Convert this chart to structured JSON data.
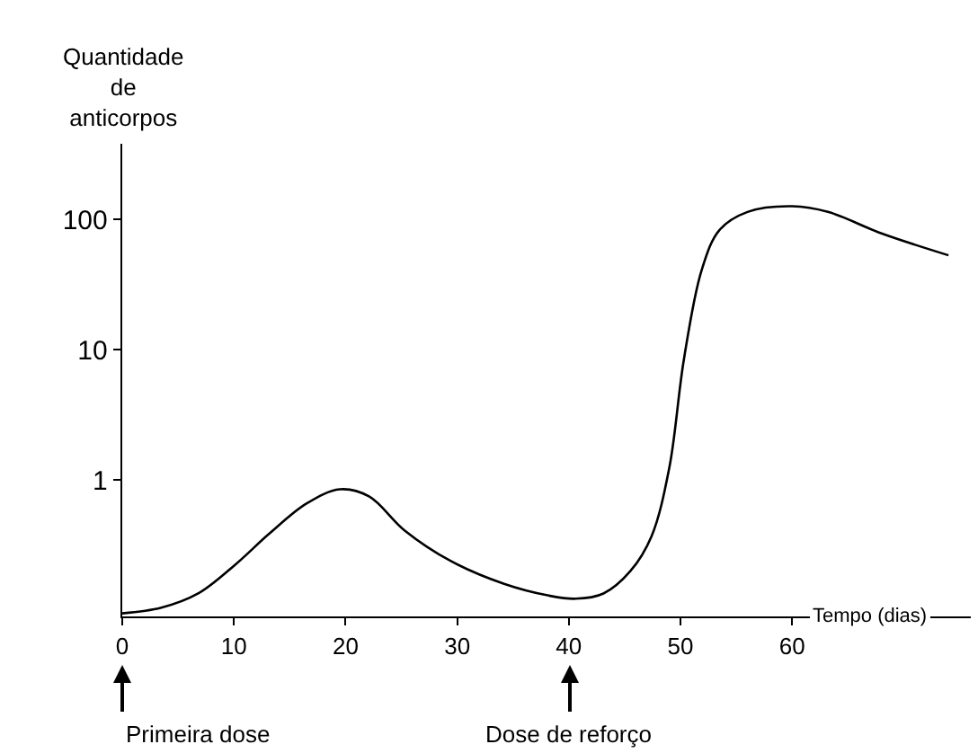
{
  "chart_data": {
    "type": "line",
    "xlabel": "Tempo (dias)",
    "ylabel": "Quantidade de anticorpos",
    "x": [
      0,
      3.5,
      6.8,
      10,
      13.2,
      16.5,
      19.5,
      22.1,
      25.3,
      29.4,
      34.2,
      38.2,
      40.6,
      43.1,
      45.5,
      47.4,
      49,
      50.3,
      51.9,
      53.5,
      56,
      60,
      63.2,
      68,
      74
    ],
    "series": [
      {
        "color": "#000000",
        "values": [
          0.095,
          0.105,
          0.135,
          0.22,
          0.39,
          0.66,
          0.85,
          0.75,
          0.41,
          0.24,
          0.16,
          0.13,
          0.123,
          0.135,
          0.2,
          0.37,
          1.25,
          8.4,
          41,
          83,
          114,
          126,
          114,
          78,
          53
        ]
      }
    ],
    "xlim": [
      0,
      76
    ],
    "xticks": [
      0,
      10,
      20,
      30,
      40,
      50,
      60
    ],
    "ylim": [
      0.09,
      380
    ],
    "yticks": [
      1,
      10,
      100
    ],
    "log": "y",
    "grid": false,
    "legend": false,
    "marker": "none",
    "line_style": "solid",
    "annotations": [
      "Primeira dose",
      "Dose de reforço"
    ]
  }
}
